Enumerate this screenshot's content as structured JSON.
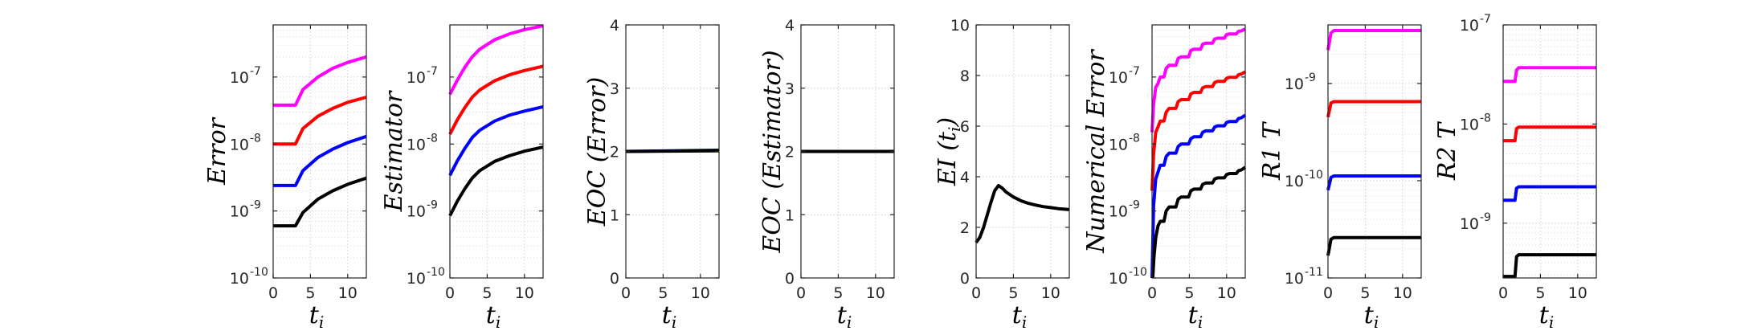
{
  "colors": {
    "magenta": "#ff00ff",
    "red": "#ff0000",
    "blue": "#0000ff",
    "black": "#000000",
    "grid": "#dcdcdc",
    "axis": "#262626"
  },
  "chart_data": [
    {
      "type": "line",
      "ylabel": "Error",
      "xlabel": "t",
      "xlabel_sub": "i",
      "yscale": "log",
      "ylim": [
        1e-10,
        6e-07
      ],
      "xlim": [
        0,
        12.5
      ],
      "xticks": [
        0,
        5,
        10
      ],
      "xtick_labels": [
        "0",
        "5",
        "10"
      ],
      "yticks": [
        1e-10,
        1e-09,
        1e-08,
        1e-07
      ],
      "ytick_labels": [
        "10",
        "10",
        "10",
        "10"
      ],
      "ytick_exps": [
        "-10",
        "-9",
        "-8",
        "-7"
      ],
      "grid": true,
      "series": [
        {
          "color": "magenta",
          "x": [
            0,
            3,
            4,
            6,
            8,
            10,
            12.5
          ],
          "y": [
            3.8e-08,
            3.8e-08,
            6.5e-08,
            1e-07,
            1.35e-07,
            1.65e-07,
            2e-07
          ]
        },
        {
          "color": "red",
          "x": [
            0,
            3,
            4,
            6,
            8,
            10,
            12.5
          ],
          "y": [
            1e-08,
            1e-08,
            1.7e-08,
            2.6e-08,
            3.4e-08,
            4.2e-08,
            5e-08
          ]
        },
        {
          "color": "blue",
          "x": [
            0,
            3,
            4,
            6,
            8,
            10,
            12.5
          ],
          "y": [
            2.4e-09,
            2.4e-09,
            4e-09,
            6.3e-09,
            8.4e-09,
            1.05e-08,
            1.3e-08
          ]
        },
        {
          "color": "black",
          "x": [
            0,
            3,
            4,
            6,
            8,
            10,
            12.5
          ],
          "y": [
            6e-10,
            6e-10,
            9.5e-10,
            1.5e-09,
            2e-09,
            2.5e-09,
            3.1e-09
          ]
        }
      ]
    },
    {
      "type": "line",
      "ylabel": "Estimator",
      "xlabel": "t",
      "xlabel_sub": "i",
      "yscale": "log",
      "ylim": [
        1e-10,
        6e-07
      ],
      "xlim": [
        0,
        12.5
      ],
      "xticks": [
        0,
        5,
        10
      ],
      "xtick_labels": [
        "0",
        "5",
        "10"
      ],
      "yticks": [
        1e-10,
        1e-09,
        1e-08,
        1e-07
      ],
      "ytick_labels": [
        "10",
        "10",
        "10",
        "10"
      ],
      "ytick_exps": [
        "-10",
        "-9",
        "-8",
        "-7"
      ],
      "grid": true,
      "series": [
        {
          "color": "magenta",
          "x": [
            0,
            1,
            2,
            3,
            4,
            6,
            8,
            10,
            12.5
          ],
          "y": [
            5.5e-08,
            9e-08,
            1.4e-07,
            2e-07,
            2.6e-07,
            3.6e-07,
            4.4e-07,
            5.1e-07,
            5.8e-07
          ]
        },
        {
          "color": "red",
          "x": [
            0,
            1,
            2,
            3,
            4,
            6,
            8,
            10,
            12.5
          ],
          "y": [
            1.4e-08,
            2.3e-08,
            3.5e-08,
            5e-08,
            6.4e-08,
            8.8e-08,
            1.08e-07,
            1.25e-07,
            1.45e-07
          ]
        },
        {
          "color": "blue",
          "x": [
            0,
            1,
            2,
            3,
            4,
            6,
            8,
            10,
            12.5
          ],
          "y": [
            3.4e-09,
            5.6e-09,
            8.6e-09,
            1.25e-08,
            1.6e-08,
            2.2e-08,
            2.7e-08,
            3.1e-08,
            3.6e-08
          ]
        },
        {
          "color": "black",
          "x": [
            0,
            1,
            2,
            3,
            4,
            6,
            8,
            10,
            12.5
          ],
          "y": [
            8.5e-10,
            1.4e-09,
            2.15e-09,
            3.1e-09,
            4e-09,
            5.5e-09,
            6.7e-09,
            7.8e-09,
            9e-09
          ]
        }
      ]
    },
    {
      "type": "line",
      "ylabel": "EOC (Error)",
      "xlabel": "t",
      "xlabel_sub": "i",
      "yscale": "linear",
      "ylim": [
        0,
        4
      ],
      "xlim": [
        0,
        12.5
      ],
      "xticks": [
        0,
        5,
        10
      ],
      "xtick_labels": [
        "0",
        "5",
        "10"
      ],
      "yticks": [
        0,
        1,
        2,
        3,
        4
      ],
      "ytick_labels": [
        "0",
        "1",
        "2",
        "3",
        "4"
      ],
      "grid": true,
      "series": [
        {
          "color": "blue",
          "x": [
            0,
            12.5
          ],
          "y": [
            2.0,
            2.02
          ]
        },
        {
          "color": "black",
          "x": [
            0,
            12.5
          ],
          "y": [
            2.0,
            2.01
          ]
        }
      ]
    },
    {
      "type": "line",
      "ylabel": "EOC (Estimator)",
      "xlabel": "t",
      "xlabel_sub": "i",
      "yscale": "linear",
      "ylim": [
        0,
        4
      ],
      "xlim": [
        0,
        12.5
      ],
      "xticks": [
        0,
        5,
        10
      ],
      "xtick_labels": [
        "0",
        "5",
        "10"
      ],
      "yticks": [
        0,
        1,
        2,
        3,
        4
      ],
      "ytick_labels": [
        "0",
        "1",
        "2",
        "3",
        "4"
      ],
      "grid": true,
      "series": [
        {
          "color": "blue",
          "x": [
            0,
            12.5
          ],
          "y": [
            2.0,
            2.0
          ]
        },
        {
          "color": "black",
          "x": [
            0,
            12.5
          ],
          "y": [
            2.0,
            2.0
          ]
        }
      ]
    },
    {
      "type": "line",
      "ylabel": "EI (t",
      "ylabel_sub": "i",
      "ylabel_tail": ")",
      "xlabel": "t",
      "xlabel_sub": "i",
      "yscale": "linear",
      "ylim": [
        0,
        10
      ],
      "xlim": [
        0,
        12.5
      ],
      "xticks": [
        0,
        5,
        10
      ],
      "xtick_labels": [
        "0",
        "5",
        "10"
      ],
      "yticks": [
        0,
        2,
        4,
        6,
        8,
        10
      ],
      "ytick_labels": [
        "0",
        "2",
        "4",
        "6",
        "8",
        "10"
      ],
      "grid": true,
      "series": [
        {
          "color": "black",
          "x": [
            0,
            0.5,
            1,
            1.5,
            2,
            2.5,
            3,
            3.5,
            4,
            5,
            6,
            7,
            8,
            9,
            10,
            11,
            12.5
          ],
          "y": [
            1.4,
            1.6,
            2.0,
            2.5,
            3.0,
            3.45,
            3.65,
            3.55,
            3.4,
            3.2,
            3.05,
            2.95,
            2.88,
            2.82,
            2.78,
            2.74,
            2.7
          ]
        }
      ]
    },
    {
      "type": "line",
      "ylabel": "Numerical Error",
      "xlabel": "t",
      "xlabel_sub": "i",
      "yscale": "log",
      "ylim": [
        1e-10,
        6e-07
      ],
      "xlim": [
        0,
        12.5
      ],
      "xticks": [
        0,
        5,
        10
      ],
      "xtick_labels": [
        "0",
        "5",
        "10"
      ],
      "yticks": [
        1e-10,
        1e-09,
        1e-08,
        1e-07
      ],
      "ytick_labels": [
        "10",
        "10",
        "10",
        "10"
      ],
      "ytick_exps": [
        "-10",
        "-9",
        "-8",
        "-7"
      ],
      "grid": true,
      "series": [
        {
          "color": "magenta",
          "x": [
            0,
            0.2,
            0.5,
            0.8,
            1.1,
            1.6,
            1.9,
            2.3,
            3.2,
            3.5,
            3.9,
            4.9,
            5.2,
            5.6,
            6.5,
            6.8,
            7.2,
            8.1,
            8.4,
            8.8,
            9.7,
            10.0,
            10.4,
            11.3,
            11.6,
            12.0,
            12.5
          ],
          "y": [
            1.5e-08,
            4e-08,
            7e-08,
            8e-08,
            1e-07,
            1e-07,
            1.35e-07,
            1.5e-07,
            1.5e-07,
            1.9e-07,
            2e-07,
            2e-07,
            2.5e-07,
            2.6e-07,
            2.6e-07,
            3.1e-07,
            3.2e-07,
            3.2e-07,
            3.7e-07,
            3.8e-07,
            3.8e-07,
            4.3e-07,
            4.4e-07,
            4.4e-07,
            4.8e-07,
            4.9e-07,
            5.2e-07
          ]
        },
        {
          "color": "red",
          "x": [
            0,
            0.2,
            0.5,
            0.8,
            1.1,
            1.6,
            1.9,
            2.3,
            3.2,
            3.5,
            3.9,
            4.9,
            5.2,
            5.6,
            6.5,
            6.8,
            7.2,
            8.1,
            8.4,
            8.8,
            9.7,
            10.0,
            10.4,
            11.3,
            11.6,
            12.0,
            12.5
          ],
          "y": [
            2e-09,
            7e-09,
            1.5e-08,
            1.8e-08,
            2.2e-08,
            2.2e-08,
            3e-08,
            3.4e-08,
            3.4e-08,
            4.3e-08,
            4.6e-08,
            4.6e-08,
            5.6e-08,
            5.9e-08,
            5.9e-08,
            6.9e-08,
            7.2e-08,
            7.2e-08,
            8.3e-08,
            8.6e-08,
            8.6e-08,
            9.6e-08,
            9.9e-08,
            9.9e-08,
            1.08e-07,
            1.11e-07,
            1.2e-07
          ]
        },
        {
          "color": "blue",
          "x": [
            0,
            0.2,
            0.5,
            0.8,
            1.1,
            1.6,
            1.9,
            2.3,
            3.2,
            3.5,
            3.9,
            4.9,
            5.2,
            5.6,
            6.5,
            6.8,
            7.2,
            8.1,
            8.4,
            8.8,
            9.7,
            10.0,
            10.4,
            11.3,
            11.6,
            12.0,
            12.5
          ],
          "y": [
            1e-10,
            1.2e-09,
            3e-09,
            3.8e-09,
            4.8e-09,
            4.8e-09,
            6.5e-09,
            7.3e-09,
            7.3e-09,
            9.2e-09,
            1e-08,
            1e-08,
            1.2e-08,
            1.28e-08,
            1.28e-08,
            1.5e-08,
            1.57e-08,
            1.57e-08,
            1.8e-08,
            1.87e-08,
            1.87e-08,
            2.1e-08,
            2.17e-08,
            2.17e-08,
            2.4e-08,
            2.47e-08,
            2.7e-08
          ]
        },
        {
          "color": "black",
          "x": [
            0.1,
            0.25,
            0.5,
            0.8,
            1.1,
            1.6,
            1.9,
            2.3,
            3.2,
            3.5,
            3.9,
            4.9,
            5.2,
            5.6,
            6.5,
            6.8,
            7.2,
            8.1,
            8.4,
            8.8,
            9.7,
            10.0,
            10.4,
            11.3,
            11.6,
            12.0,
            12.5
          ],
          "y": [
            1e-10,
            2e-10,
            4e-10,
            6e-10,
            7e-10,
            7e-10,
            1e-09,
            1.15e-09,
            1.15e-09,
            1.5e-09,
            1.62e-09,
            1.62e-09,
            2e-09,
            2.12e-09,
            2.12e-09,
            2.5e-09,
            2.62e-09,
            2.62e-09,
            3e-09,
            3.12e-09,
            3.12e-09,
            3.5e-09,
            3.62e-09,
            3.62e-09,
            4e-09,
            4.12e-09,
            4.5e-09
          ]
        }
      ]
    },
    {
      "type": "line",
      "ylabel": "R1 T",
      "xlabel": "t",
      "xlabel_sub": "i",
      "yscale": "log",
      "ylim": [
        1e-11,
        4e-09
      ],
      "xlim": [
        0,
        12.5
      ],
      "xticks": [
        0,
        5,
        10
      ],
      "xtick_labels": [
        "0",
        "5",
        "10"
      ],
      "yticks": [
        1e-11,
        1e-10,
        1e-09
      ],
      "ytick_labels": [
        "10",
        "10",
        "10"
      ],
      "ytick_exps": [
        "-11",
        "-10",
        "-9"
      ],
      "grid": true,
      "series": [
        {
          "color": "magenta",
          "x": [
            0,
            0.4,
            0.8,
            12.5
          ],
          "y": [
            2.2e-09,
            3.3e-09,
            3.5e-09,
            3.5e-09
          ]
        },
        {
          "color": "red",
          "x": [
            0,
            0.4,
            0.8,
            12.5
          ],
          "y": [
            4.5e-10,
            6.3e-10,
            6.5e-10,
            6.5e-10
          ]
        },
        {
          "color": "blue",
          "x": [
            0,
            0.4,
            0.8,
            12.5
          ],
          "y": [
            8e-11,
            1.08e-10,
            1.12e-10,
            1.12e-10
          ]
        },
        {
          "color": "black",
          "x": [
            0,
            0.4,
            0.8,
            12.5
          ],
          "y": [
            1.7e-11,
            2.5e-11,
            2.6e-11,
            2.6e-11
          ]
        }
      ]
    },
    {
      "type": "line",
      "ylabel": "R2 T",
      "xlabel": "t",
      "xlabel_sub": "i",
      "yscale": "log",
      "ylim": [
        2.8e-10,
        1e-07
      ],
      "xlim": [
        0,
        12.5
      ],
      "xticks": [
        0,
        5,
        10
      ],
      "xtick_labels": [
        "0",
        "5",
        "10"
      ],
      "yticks": [
        1e-09,
        1e-08,
        1e-07
      ],
      "ytick_labels": [
        "10",
        "10",
        "10"
      ],
      "ytick_exps": [
        "-9",
        "-8",
        "-7"
      ],
      "grid": true,
      "series": [
        {
          "color": "magenta",
          "x": [
            0,
            1.6,
            1.8,
            2.1,
            12.5
          ],
          "y": [
            2.7e-08,
            2.7e-08,
            3.5e-08,
            3.7e-08,
            3.7e-08
          ]
        },
        {
          "color": "red",
          "x": [
            0,
            1.6,
            1.8,
            2.1,
            12.5
          ],
          "y": [
            6.8e-09,
            6.8e-09,
            9e-09,
            9.3e-09,
            9.3e-09
          ]
        },
        {
          "color": "blue",
          "x": [
            0,
            1.6,
            1.8,
            2.1,
            12.5
          ],
          "y": [
            1.7e-09,
            1.7e-09,
            2.25e-09,
            2.33e-09,
            2.33e-09
          ]
        },
        {
          "color": "black",
          "x": [
            0,
            1.6,
            1.8,
            2.1,
            12.5
          ],
          "y": [
            2.9e-10,
            2.9e-10,
            4.6e-10,
            4.8e-10,
            4.8e-10
          ]
        }
      ]
    }
  ]
}
